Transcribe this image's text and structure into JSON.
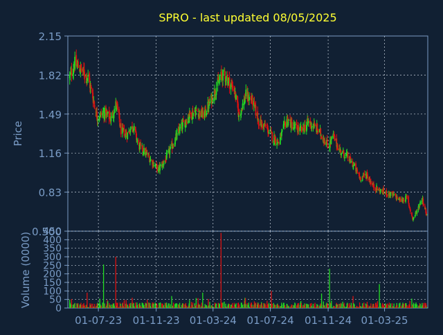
{
  "page": {
    "title": "SPRO - last updated 08/05/2025",
    "colors": {
      "background": "#112033",
      "title": "#ffff33",
      "axis_text": "#7a9cc6",
      "axis_line": "#7a9cc6",
      "grid": "#c9d3de",
      "up": "#22dd22",
      "down": "#dd1111"
    }
  },
  "chart_data": [
    {
      "type": "candlestick",
      "name": "price",
      "ylabel": "Price",
      "ylim": [
        0.5,
        2.15
      ],
      "yticks": [
        "0.500",
        "0.83",
        "1.16",
        "1.49",
        "1.82",
        "2.15"
      ],
      "ytick_values": [
        0.5,
        0.83,
        1.16,
        1.49,
        1.82,
        2.15
      ],
      "grid": true,
      "path": [
        [
          "2023-05-01",
          1.8
        ],
        [
          "2023-05-12",
          1.92
        ],
        [
          "2023-05-26",
          1.86
        ],
        [
          "2023-06-09",
          1.8
        ],
        [
          "2023-06-20",
          1.62
        ],
        [
          "2023-06-28",
          1.47
        ],
        [
          "2023-07-14",
          1.5
        ],
        [
          "2023-07-28",
          1.45
        ],
        [
          "2023-08-08",
          1.58
        ],
        [
          "2023-08-18",
          1.35
        ],
        [
          "2023-09-01",
          1.32
        ],
        [
          "2023-09-12",
          1.4
        ],
        [
          "2023-09-25",
          1.22
        ],
        [
          "2023-10-10",
          1.16
        ],
        [
          "2023-10-25",
          1.08
        ],
        [
          "2023-11-05",
          1.02
        ],
        [
          "2023-11-20",
          1.1
        ],
        [
          "2023-12-05",
          1.22
        ],
        [
          "2023-12-20",
          1.35
        ],
        [
          "2024-01-10",
          1.48
        ],
        [
          "2024-01-25",
          1.52
        ],
        [
          "2024-02-10",
          1.48
        ],
        [
          "2024-02-25",
          1.6
        ],
        [
          "2024-03-08",
          1.72
        ],
        [
          "2024-03-20",
          1.82
        ],
        [
          "2024-03-29",
          1.8
        ],
        [
          "2024-04-15",
          1.7
        ],
        [
          "2024-04-25",
          1.48
        ],
        [
          "2024-05-10",
          1.65
        ],
        [
          "2024-05-24",
          1.6
        ],
        [
          "2024-06-07",
          1.42
        ],
        [
          "2024-06-21",
          1.38
        ],
        [
          "2024-07-05",
          1.3
        ],
        [
          "2024-07-19",
          1.25
        ],
        [
          "2024-08-05",
          1.45
        ],
        [
          "2024-08-20",
          1.38
        ],
        [
          "2024-09-05",
          1.35
        ],
        [
          "2024-09-20",
          1.42
        ],
        [
          "2024-10-05",
          1.38
        ],
        [
          "2024-10-20",
          1.3
        ],
        [
          "2024-11-01",
          1.22
        ],
        [
          "2024-11-12",
          1.3
        ],
        [
          "2024-11-26",
          1.18
        ],
        [
          "2024-12-10",
          1.14
        ],
        [
          "2024-12-26",
          1.05
        ],
        [
          "2025-01-08",
          0.95
        ],
        [
          "2025-01-22",
          0.98
        ],
        [
          "2025-02-05",
          0.88
        ],
        [
          "2025-02-20",
          0.84
        ],
        [
          "2025-03-07",
          0.82
        ],
        [
          "2025-03-21",
          0.8
        ],
        [
          "2025-04-04",
          0.76
        ],
        [
          "2025-04-18",
          0.78
        ],
        [
          "2025-04-30",
          0.6
        ],
        [
          "2025-05-10",
          0.68
        ],
        [
          "2025-05-20",
          0.78
        ],
        [
          "2025-05-31",
          0.62
        ]
      ]
    },
    {
      "type": "bar",
      "name": "volume",
      "ylabel": "Volume (0000)",
      "ylim": [
        0,
        450
      ],
      "yticks": [
        "0",
        "50",
        "100",
        "150",
        "200",
        "250",
        "300",
        "350",
        "400",
        "450"
      ],
      "ytick_values": [
        0,
        50,
        100,
        150,
        200,
        250,
        300,
        350,
        400,
        450
      ],
      "grid": true,
      "baseline": 18,
      "spikes": [
        [
          "2023-06-09",
          90,
          "down"
        ],
        [
          "2023-07-14",
          255,
          "up"
        ],
        [
          "2023-08-08",
          300,
          "down"
        ],
        [
          "2023-09-12",
          60,
          "down"
        ],
        [
          "2023-12-05",
          70,
          "up"
        ],
        [
          "2024-02-10",
          90,
          "up"
        ],
        [
          "2024-03-20",
          440,
          "down"
        ],
        [
          "2024-05-10",
          60,
          "up"
        ],
        [
          "2024-07-05",
          100,
          "down"
        ],
        [
          "2024-10-20",
          85,
          "up"
        ],
        [
          "2024-11-05",
          230,
          "up"
        ],
        [
          "2024-12-26",
          70,
          "down"
        ],
        [
          "2025-02-20",
          140,
          "up"
        ],
        [
          "2025-04-30",
          55,
          "up"
        ]
      ]
    }
  ],
  "x_axis": {
    "range": [
      "2023-04-27",
      "2025-06-01"
    ],
    "tick_labels": [
      "01-07-23",
      "01-11-23",
      "01-03-24",
      "01-07-24",
      "01-11-24",
      "01-03-25"
    ],
    "tick_dates": [
      "2023-07-01",
      "2023-11-01",
      "2024-03-01",
      "2024-07-01",
      "2024-11-01",
      "2025-03-01"
    ]
  }
}
